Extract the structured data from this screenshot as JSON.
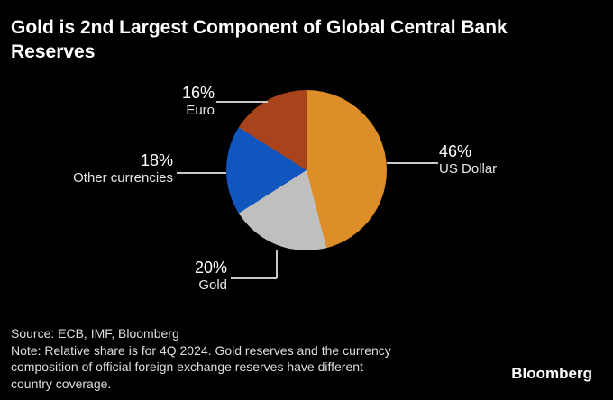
{
  "title": "Gold is 2nd Largest Component of Global Central Bank Reserves",
  "chart_data": {
    "type": "pie",
    "title": "Gold is 2nd Largest Component of Global Central Bank Reserves",
    "unit": "%",
    "start_angle_deg": 0,
    "direction": "clockwise",
    "slices": [
      {
        "label": "US Dollar",
        "value": 46,
        "color": "#DD8E28"
      },
      {
        "label": "Gold",
        "value": 20,
        "color": "#BFBFBF"
      },
      {
        "label": "Other currencies",
        "value": 18,
        "color": "#1156BE"
      },
      {
        "label": "Euro",
        "value": 16,
        "color": "#A8431C"
      }
    ],
    "legend_position": "callout-labels"
  },
  "labels": {
    "usd": {
      "pct": "46%",
      "name": "US Dollar"
    },
    "gold": {
      "pct": "20%",
      "name": "Gold"
    },
    "other": {
      "pct": "18%",
      "name": "Other currencies"
    },
    "euro": {
      "pct": "16%",
      "name": "Euro"
    }
  },
  "footer": {
    "source": "Source: ECB, IMF, Bloomberg",
    "note_lines": [
      "Note: Relative share is for 4Q 2024. Gold reserves and the currency",
      "composition of official foreign exchange reserves have different",
      "country coverage."
    ],
    "brand": "Bloomberg"
  },
  "colors": {
    "background": "#000000",
    "title_text": "#FFFFFF",
    "label_pct_text": "#FFFFFF",
    "label_name_text": "#E6E6E6",
    "footer_text": "#DEDEDE",
    "leader_line": "#C9C9C9"
  }
}
